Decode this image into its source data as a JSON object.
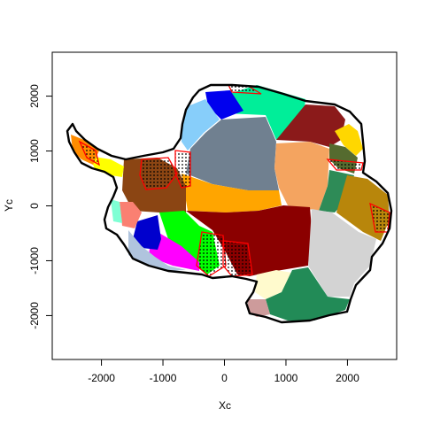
{
  "chart_data": {
    "type": "map",
    "xlabel": "Xc",
    "ylabel": "Yc",
    "xlim": [
      -2800,
      2800
    ],
    "ylim": [
      -2800,
      2800
    ],
    "x_ticks": [
      -2000,
      -1000,
      0,
      1000,
      2000
    ],
    "y_ticks": [
      -2000,
      -1000,
      0,
      1000,
      2000
    ],
    "grid": false,
    "legend": "none",
    "region_colors": [
      "#00ee99",
      "#0000ee",
      "#87cefa",
      "#708090",
      "#8b1a1a",
      "#ffd700",
      "#556b2f",
      "#f4a460",
      "#2e8b57",
      "#b8860b",
      "#ffa500",
      "#8b4513",
      "#8b0000",
      "#00ff00",
      "#ff00ff",
      "#d3d3d3",
      "#0000cd",
      "#fa8072",
      "#7fffd4",
      "#fffacd",
      "#228b57",
      "#cd9b9b",
      "#b0c4de",
      "#ffff00",
      "#ff8c00"
    ],
    "outline_color": "#000000",
    "highlight_color": "#ff0000"
  }
}
